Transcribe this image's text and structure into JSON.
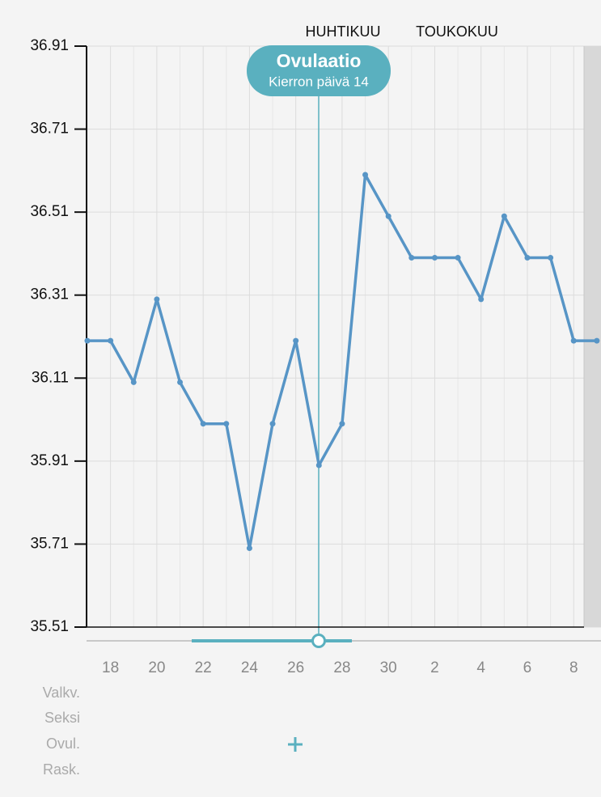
{
  "chart_data": {
    "type": "line",
    "categories": [
      null,
      "18",
      null,
      "20",
      null,
      "22",
      null,
      "24",
      null,
      "26",
      null,
      "28",
      null,
      "30",
      null,
      "2",
      null,
      "4",
      null,
      "6",
      null,
      "8",
      null
    ],
    "values": [
      36.2,
      36.2,
      36.1,
      36.3,
      36.1,
      36.0,
      36.0,
      35.7,
      36.0,
      36.2,
      35.9,
      36.0,
      36.6,
      36.5,
      36.4,
      36.4,
      36.4,
      36.3,
      36.5,
      36.4,
      36.4,
      36.2,
      36.2
    ],
    "color": "#5795c6",
    "ylim": [
      35.51,
      36.91
    ],
    "yticks": [
      35.51,
      35.71,
      35.91,
      36.11,
      36.31,
      36.51,
      36.71,
      36.91
    ],
    "grid": true,
    "month_labels": [
      "HUHTIKUU",
      "TOUKOKUU"
    ],
    "marker": {
      "title": "Ovulaatio",
      "subtitle": "Kierron päivä 14",
      "color": "#5ab0bf"
    },
    "rows": [
      "Valkv.",
      "Seksi",
      "Ovul.",
      "Rask."
    ]
  }
}
